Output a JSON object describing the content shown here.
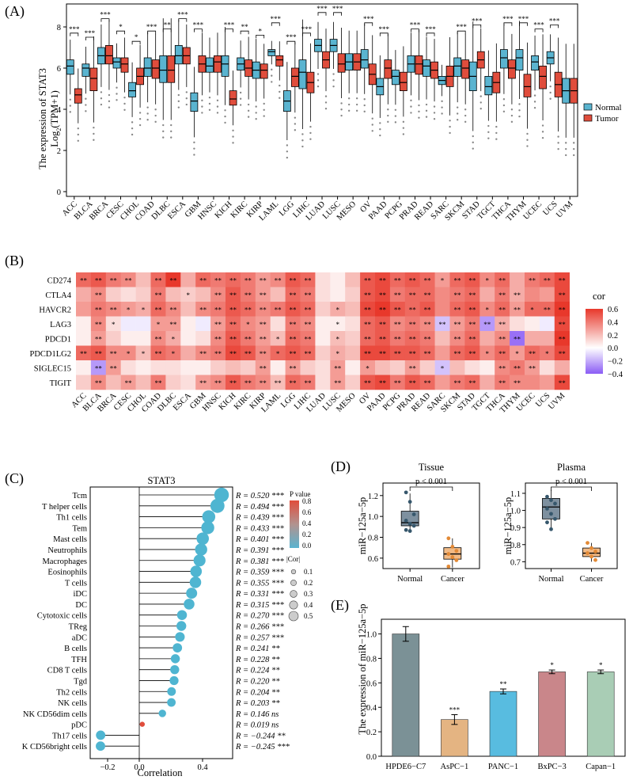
{
  "panel_labels": {
    "a": "(A)",
    "b": "(B)",
    "c": "(C)",
    "d": "(D)",
    "e": "(E)"
  },
  "colors": {
    "normal": "#5ab4d0",
    "tumor": "#e04d3c",
    "heat_high": "#e8382b",
    "heat_mid": "#ffffff",
    "heat_low": "#8a5cf5",
    "lollipop": "#4fb5d1",
    "box_normal": "#7e909f",
    "box_cancer": "#f1ba86",
    "pt_normal": "#36576c",
    "pt_cancer": "#e38a36",
    "bar_colors": [
      "#7b9196",
      "#e4b482",
      "#58bce0",
      "#c9868a",
      "#a9cdb5"
    ]
  },
  "chart_data": [
    {
      "type": "box",
      "panel": "A",
      "ylabel_1": "The expression of STAT3",
      "ylabel_2": "Log",
      "ylabel_sub": "2",
      "ylabel_3": "(TPM+1)",
      "ylim": [
        0,
        9
      ],
      "yticks": [
        0,
        2,
        4,
        6,
        8
      ],
      "legend": [
        "Normal",
        "Tumor"
      ],
      "categories": [
        "ACC",
        "BLCA",
        "BRCA",
        "CESC",
        "CHOL",
        "COAD",
        "DLBC",
        "ESCA",
        "GBM",
        "HNSC",
        "KICH",
        "KIRC",
        "KIRP",
        "LAML",
        "LGG",
        "LIHC",
        "LUAD",
        "LUSC",
        "MESO",
        "OV",
        "PAAD",
        "PCPG",
        "PRAD",
        "READ",
        "SARC",
        "SKCM",
        "STAD",
        "TGCT",
        "THCA",
        "THYM",
        "UCEC",
        "UCS",
        "UVM"
      ],
      "normal_median": [
        6.1,
        6.0,
        6.6,
        6.3,
        4.9,
        6.0,
        5.9,
        6.6,
        4.4,
        6.1,
        6.2,
        6.2,
        5.9,
        6.8,
        4.4,
        5.8,
        7.1,
        7.1,
        6.3,
        6.4,
        5.1,
        5.6,
        6.2,
        6.1,
        5.4,
        6.1,
        5.6,
        5.1,
        6.5,
        6.5,
        6.3,
        6.5,
        4.9
      ],
      "normal_q1": [
        5.7,
        5.6,
        6.2,
        6.0,
        4.6,
        5.6,
        5.3,
        6.2,
        3.9,
        5.8,
        5.6,
        5.9,
        5.5,
        6.6,
        3.9,
        5.0,
        6.8,
        6.8,
        5.9,
        6.0,
        4.7,
        5.2,
        5.8,
        5.6,
        5.2,
        5.6,
        4.9,
        4.7,
        6.0,
        5.9,
        5.9,
        6.2,
        4.3
      ],
      "normal_q3": [
        6.4,
        6.2,
        7.0,
        6.5,
        5.3,
        6.5,
        6.6,
        7.1,
        4.8,
        6.5,
        6.6,
        6.5,
        6.3,
        6.9,
        4.9,
        6.4,
        7.4,
        7.4,
        6.7,
        6.9,
        5.5,
        5.9,
        6.6,
        6.4,
        5.6,
        6.5,
        6.3,
        5.6,
        6.9,
        6.9,
        6.6,
        6.8,
        5.5
      ],
      "tumor_median": [
        4.7,
        5.5,
        6.6,
        6.2,
        5.6,
        6.0,
        5.9,
        6.6,
        6.2,
        6.3,
        4.5,
        6.0,
        5.9,
        6.4,
        5.6,
        5.3,
        6.4,
        6.2,
        6.3,
        5.7,
        6.0,
        5.3,
        6.2,
        5.9,
        5.6,
        6.0,
        6.4,
        5.3,
        6.0,
        5.1,
        5.6,
        5.2,
        4.9
      ],
      "tumor_q1": [
        4.3,
        4.9,
        6.2,
        5.8,
        5.2,
        5.5,
        5.3,
        6.2,
        5.8,
        5.8,
        4.2,
        5.6,
        5.5,
        6.1,
        5.1,
        4.8,
        6.0,
        5.8,
        5.9,
        5.2,
        5.5,
        4.9,
        5.7,
        5.5,
        5.1,
        5.5,
        6.0,
        4.8,
        5.5,
        4.6,
        5.0,
        4.6,
        4.3
      ],
      "tumor_q3": [
        5.0,
        6.0,
        7.1,
        6.5,
        6.0,
        6.4,
        6.6,
        7.0,
        6.6,
        6.6,
        4.9,
        6.4,
        6.2,
        6.6,
        6.0,
        5.8,
        6.8,
        6.7,
        6.7,
        6.2,
        6.4,
        5.8,
        6.6,
        6.3,
        6.1,
        6.4,
        6.8,
        5.8,
        6.4,
        5.7,
        6.1,
        5.8,
        5.5
      ],
      "significance": [
        "***",
        "***",
        "***",
        "*",
        "*",
        "***",
        "**",
        "***",
        "***",
        "",
        "***",
        "**",
        "*",
        "***",
        "***",
        "***",
        "***",
        "***",
        "",
        "***",
        "***",
        "",
        "***",
        "***",
        "",
        "***",
        "***",
        "",
        "***",
        "***",
        "***",
        "***",
        ""
      ]
    },
    {
      "type": "heatmap",
      "panel": "B",
      "rows": [
        "CD274",
        "CTLA4",
        "HAVCR2",
        "LAG3",
        "PDCD1",
        "PDCD1LG2",
        "SIGLEC15",
        "TIGIT"
      ],
      "columns": [
        "ACC",
        "BLCA",
        "BRCA",
        "CESC",
        "CHOL",
        "COAD",
        "DLBC",
        "ESCA",
        "GBM",
        "HNSC",
        "KICH",
        "KIRC",
        "KIRP",
        "LAML",
        "LGG",
        "LIHC",
        "LUAD",
        "LUSC",
        "MESO",
        "OV",
        "PAAD",
        "PCPG",
        "PRAD",
        "READ",
        "SARC",
        "SKCM",
        "STAD",
        "TGCT",
        "THCA",
        "THYM",
        "UCEC",
        "UCS",
        "UVM"
      ],
      "legend_title": "cor",
      "legend_ticks": [
        "0.6",
        "0.4",
        "0.2",
        "0.0",
        "−0.2",
        "−0.4"
      ],
      "legend_values": [
        0.6,
        0.4,
        0.2,
        0.0,
        -0.2,
        -0.4
      ],
      "values": [
        [
          0.45,
          0.5,
          0.4,
          0.35,
          0.2,
          0.45,
          0.7,
          0.25,
          0.45,
          0.4,
          0.45,
          0.4,
          0.3,
          0.35,
          0.5,
          0.45,
          0.1,
          0.05,
          0.2,
          0.5,
          0.55,
          0.45,
          0.5,
          0.45,
          0.3,
          0.45,
          0.5,
          0.35,
          0.45,
          0.25,
          0.4,
          0.45,
          0.55
        ],
        [
          0.25,
          0.35,
          0.15,
          0.1,
          0.15,
          0.4,
          0.2,
          0.15,
          0.2,
          0.35,
          0.5,
          0.4,
          0.3,
          0.2,
          0.45,
          0.4,
          0.1,
          0.05,
          0.15,
          0.5,
          0.55,
          0.4,
          0.45,
          0.45,
          0.35,
          0.4,
          0.45,
          0.25,
          0.4,
          0.25,
          0.35,
          0.3,
          0.55
        ],
        [
          0.3,
          0.4,
          0.35,
          0.3,
          0.25,
          0.45,
          0.35,
          0.2,
          0.35,
          0.4,
          0.5,
          0.45,
          0.35,
          0.4,
          0.5,
          0.45,
          0.15,
          0.25,
          0.2,
          0.55,
          0.6,
          0.5,
          0.45,
          0.5,
          0.35,
          0.45,
          0.5,
          0.35,
          0.45,
          0.3,
          0.45,
          0.45,
          0.6
        ],
        [
          0.05,
          0.35,
          0.1,
          -0.05,
          -0.05,
          0.3,
          0.3,
          0.05,
          -0.05,
          0.3,
          0.45,
          0.35,
          0.3,
          0.1,
          0.4,
          0.35,
          0.05,
          0.05,
          0.1,
          0.45,
          0.5,
          0.35,
          0.4,
          0.35,
          -0.15,
          0.3,
          0.4,
          -0.25,
          0.25,
          0.1,
          0.05,
          -0.05,
          0.55
        ],
        [
          0.05,
          0.3,
          0.15,
          0.05,
          0.05,
          0.35,
          0.25,
          0.05,
          0.1,
          0.35,
          0.5,
          0.4,
          0.3,
          0.2,
          0.45,
          0.4,
          0.05,
          0.2,
          0.15,
          0.45,
          0.5,
          0.4,
          0.45,
          0.4,
          0.2,
          0.35,
          0.45,
          0.25,
          0.35,
          -0.35,
          0.25,
          0.25,
          0.6
        ],
        [
          0.45,
          0.5,
          0.35,
          0.35,
          0.2,
          0.45,
          0.4,
          0.25,
          0.35,
          0.4,
          0.55,
          0.5,
          0.35,
          0.45,
          0.5,
          0.45,
          0.15,
          0.25,
          0.2,
          0.55,
          0.55,
          0.5,
          0.5,
          0.45,
          0.3,
          0.45,
          0.5,
          0.35,
          0.45,
          0.3,
          0.45,
          0.4,
          0.55
        ],
        [
          0.05,
          -0.25,
          0.3,
          0.1,
          0.05,
          0.1,
          0.1,
          0.05,
          0.05,
          0.15,
          0.2,
          0.15,
          0.3,
          0.05,
          0.3,
          0.15,
          0.1,
          0.3,
          0.05,
          0.3,
          0.2,
          0.15,
          0.3,
          0.15,
          -0.15,
          0.2,
          0.1,
          0.05,
          0.35,
          0.4,
          0.3,
          0.1,
          0.25
        ],
        [
          0.15,
          0.35,
          0.2,
          0.3,
          0.2,
          0.4,
          0.15,
          0.1,
          0.3,
          0.35,
          0.5,
          0.4,
          0.35,
          0.2,
          0.45,
          0.4,
          0.1,
          0.3,
          0.15,
          0.5,
          0.55,
          0.4,
          0.5,
          0.45,
          0.3,
          0.4,
          0.45,
          0.25,
          0.4,
          0.35,
          0.35,
          0.3,
          0.55
        ]
      ],
      "stars": [
        [
          "**",
          "**",
          "**",
          "**",
          "",
          "**",
          "**",
          "",
          "**",
          "**",
          "**",
          "**",
          "**",
          "**",
          "**",
          "**",
          "",
          "",
          "",
          "**",
          "**",
          "**",
          "**",
          "**",
          "*",
          "**",
          "**",
          "*",
          "**",
          "",
          "**",
          "**",
          "**"
        ],
        [
          "",
          "**",
          "",
          "",
          "",
          "**",
          "",
          "*",
          "",
          "**",
          "**",
          "**",
          "**",
          "",
          "**",
          "**",
          "",
          "",
          "",
          "**",
          "**",
          "**",
          "**",
          "**",
          "",
          "**",
          "**",
          "",
          "**",
          "**",
          "",
          "",
          "**"
        ],
        [
          "",
          "**",
          "**",
          "*",
          "*",
          "**",
          "**",
          "",
          "**",
          "**",
          "**",
          "**",
          "**",
          "**",
          "**",
          "**",
          "",
          "*",
          "",
          "**",
          "**",
          "**",
          "**",
          "**",
          "",
          "**",
          "**",
          "*",
          "**",
          "**",
          "*",
          "**",
          "**"
        ],
        [
          "",
          "**",
          "*",
          "",
          "",
          "*",
          "**",
          "",
          "",
          "**",
          "**",
          "*",
          "**",
          "",
          "**",
          "**",
          "",
          "*",
          "",
          "**",
          "**",
          "**",
          "**",
          "**",
          "**",
          "**",
          "**",
          "**",
          "**",
          "",
          "",
          "",
          "**"
        ],
        [
          "",
          "**",
          "",
          "",
          "",
          "**",
          "*",
          "",
          "",
          "**",
          "**",
          "**",
          "**",
          "*",
          "**",
          "**",
          "",
          "*",
          "",
          "**",
          "**",
          "**",
          "**",
          "**",
          "",
          "**",
          "**",
          "",
          "**",
          "**",
          "",
          "",
          "**"
        ],
        [
          "**",
          "**",
          "**",
          "*",
          "*",
          "**",
          "*",
          "",
          "**",
          "**",
          "**",
          "**",
          "**",
          "*",
          "**",
          "**",
          "",
          "*",
          "",
          "**",
          "**",
          "**",
          "**",
          "**",
          "",
          "**",
          "**",
          "*",
          "**",
          "*",
          "**",
          "*",
          "**"
        ],
        [
          "",
          "**",
          "**",
          "",
          "",
          "",
          "",
          "",
          "",
          "",
          "",
          "",
          "**",
          "",
          "**",
          "",
          "",
          "**",
          "",
          "*",
          "",
          "",
          "**",
          "",
          "*",
          "",
          "",
          "",
          "**",
          "**",
          "**",
          "",
          ""
        ],
        [
          "",
          "**",
          "",
          "**",
          "",
          "**",
          "",
          "",
          "**",
          "**",
          "**",
          "**",
          "**",
          "**",
          "**",
          "**",
          "",
          "**",
          "",
          "**",
          "**",
          "**",
          "**",
          "**",
          "",
          "**",
          "**",
          "",
          "**",
          "**",
          "",
          "",
          "**"
        ]
      ]
    },
    {
      "type": "lollipop",
      "panel": "C",
      "title": "STAT3",
      "xlabel": "Correlation",
      "xlim": [
        -0.3,
        0.6
      ],
      "xticks": [
        "−0.2",
        "0.0",
        "0.4"
      ],
      "xtick_values": [
        -0.2,
        0.0,
        0.4
      ],
      "legend_p_title": "P value",
      "legend_p_ticks": [
        "0.8",
        "0.6",
        "0.4",
        "0.2",
        "0.0"
      ],
      "legend_cor_title": "|Cor|",
      "legend_cor_ticks": [
        "0.1",
        "0.2",
        "0.3",
        "0.4",
        "0.5"
      ],
      "labels": [
        "Tcm",
        "T helper cells",
        "Th1 cells",
        "Tem",
        "Mast cells",
        "Neutrophils",
        "Macrophages",
        "Eosinophils",
        "T cells",
        "iDC",
        "DC",
        "Cytotoxic cells",
        "TReg",
        "aDC",
        "B cells",
        "TFH",
        "CD8 T cells",
        "Tgd",
        "Th2 cells",
        "NK cells",
        "NK CD56dim cells",
        "pDC",
        "Th17 cells",
        "K CD56bright cells"
      ],
      "values": [
        0.52,
        0.494,
        0.439,
        0.433,
        0.401,
        0.391,
        0.381,
        0.359,
        0.355,
        0.331,
        0.315,
        0.27,
        0.266,
        0.257,
        0.241,
        0.228,
        0.224,
        0.22,
        0.204,
        0.203,
        0.146,
        0.019,
        -0.244,
        -0.245
      ],
      "p_high": [
        false,
        false,
        false,
        false,
        false,
        false,
        false,
        false,
        false,
        false,
        false,
        false,
        false,
        false,
        false,
        false,
        false,
        false,
        false,
        false,
        false,
        true,
        false,
        false
      ],
      "r_texts": [
        "R = 0.520 ***",
        "R = 0.494 ***",
        "R = 0.439 ***",
        "R = 0.433 ***",
        "R = 0.401 ***",
        "R = 0.391 ***",
        "R = 0.381 ***",
        "R = 0.359 ***",
        "R = 0.355 ***",
        "R = 0.331 ***",
        "R = 0.315 ***",
        "R = 0.270 ***",
        "R = 0.266 ***",
        "R = 0.257 ***",
        "R = 0.241 **",
        "R = 0.228 **",
        "R = 0.224 **",
        "R = 0.220 **",
        "R = 0.204 **",
        "R = 0.203 **",
        "R = 0.146 ns",
        "R = 0.019 ns",
        "R = −0.244 **",
        "R = −0.245 ***"
      ]
    },
    {
      "type": "box",
      "panel": "D-left",
      "title": "Tissue",
      "pvalue": "p < 0.001",
      "ylabel": "miR−125a−5p",
      "categories": [
        "Normal",
        "Cancer"
      ],
      "yticks": [
        0.6,
        0.8,
        1.0,
        1.2
      ],
      "ylim": [
        0.5,
        1.32
      ],
      "box_q1": [
        0.91,
        0.59
      ],
      "box_median": [
        0.94,
        0.64
      ],
      "box_q3": [
        1.05,
        0.7
      ],
      "whisker_low": [
        0.86,
        0.51
      ],
      "whisker_high": [
        1.22,
        0.79
      ],
      "points": [
        [
          1.23,
          1.14,
          1.02,
          0.96,
          0.93,
          0.91,
          0.87,
          0.86
        ],
        [
          0.79,
          0.71,
          0.67,
          0.64,
          0.61,
          0.58,
          0.52
        ]
      ]
    },
    {
      "type": "box",
      "panel": "D-right",
      "title": "Plasma",
      "pvalue": "p < 0.001",
      "ylabel": "miR−125a−5p",
      "categories": [
        "Normal",
        "Cancer"
      ],
      "yticks": [
        0.7,
        0.8,
        0.9,
        1.0,
        1.1
      ],
      "ylim": [
        0.66,
        1.16
      ],
      "box_q1": [
        0.95,
        0.73
      ],
      "box_median": [
        1.02,
        0.75
      ],
      "box_q3": [
        1.07,
        0.78
      ],
      "whisker_low": [
        0.89,
        0.7
      ],
      "whisker_high": [
        1.12,
        0.81
      ],
      "points": [
        [
          1.08,
          1.06,
          1.04,
          1.01,
          0.98,
          0.95,
          0.93,
          0.89
        ],
        [
          0.81,
          0.78,
          0.76,
          0.75,
          0.73,
          0.71
        ]
      ]
    },
    {
      "type": "bar",
      "panel": "E",
      "ylabel": "The expression of miR−125a−5p",
      "categories": [
        "HPDE6−C7",
        "AsPC−1",
        "PANC−1",
        "BxPC−3",
        "Capan−1"
      ],
      "values": [
        1.0,
        0.3,
        0.53,
        0.69,
        0.69
      ],
      "errors": [
        0.06,
        0.04,
        0.02,
        0.015,
        0.015
      ],
      "stars": [
        "",
        "***",
        "**",
        "*",
        "*"
      ],
      "yticks": [
        "0.0",
        "0.2",
        "0.4",
        "0.6",
        "0.8",
        "1.0"
      ],
      "ytick_values": [
        0,
        0.2,
        0.4,
        0.6,
        0.8,
        1.0
      ],
      "ylim": [
        0,
        1.12
      ]
    }
  ]
}
